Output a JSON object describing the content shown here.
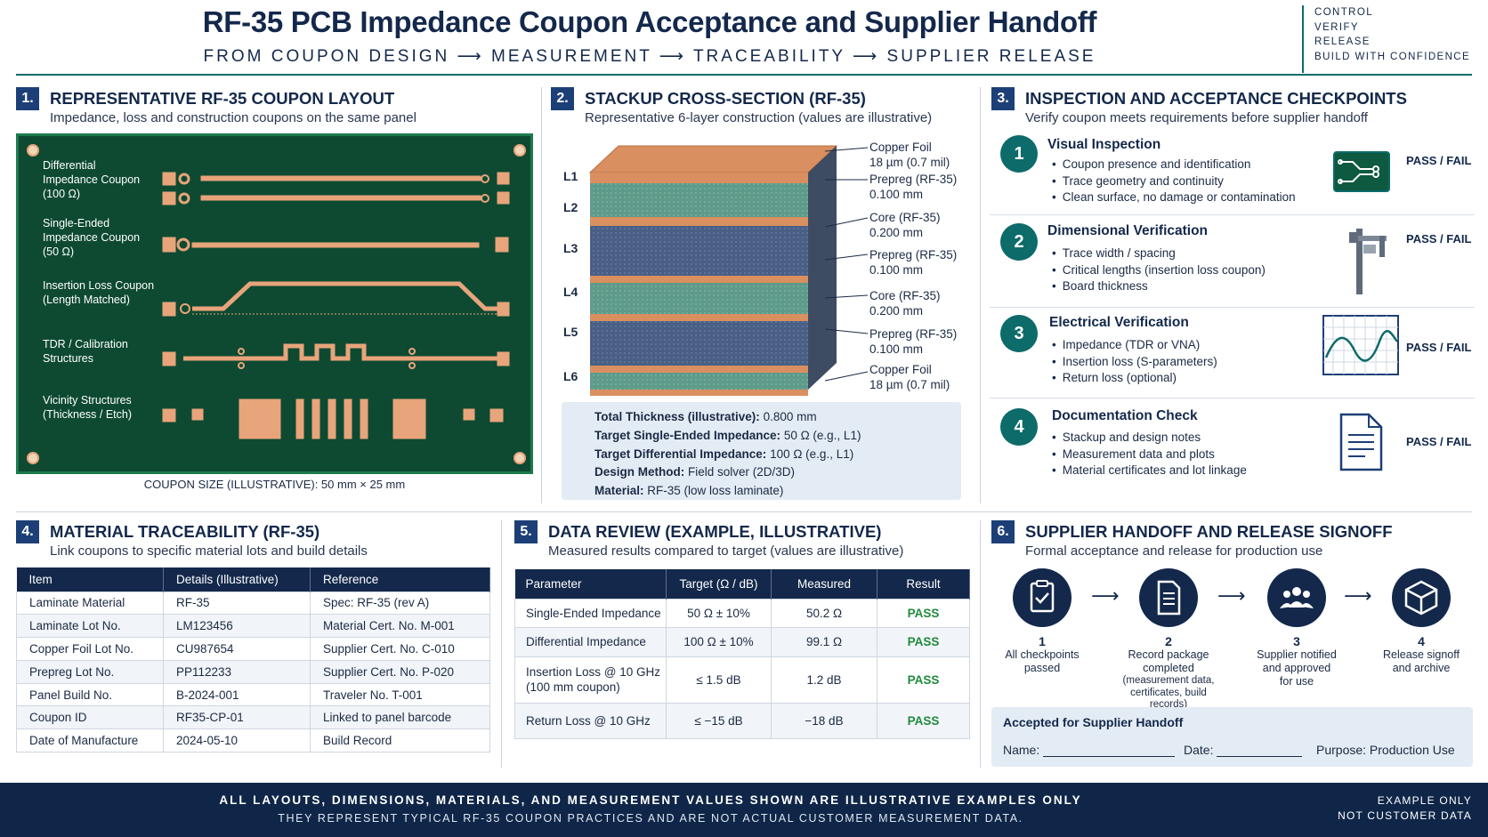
{
  "header": {
    "title": "RF-35 PCB Impedance Coupon Acceptance and Supplier Handoff",
    "subtitle": "FROM COUPON DESIGN ⟶ MEASUREMENT ⟶ TRACEABILITY ⟶ SUPPLIER RELEASE",
    "tagline": [
      "CONTROL",
      "VERIFY",
      "RELEASE",
      "BUILD WITH CONFIDENCE"
    ]
  },
  "section1": {
    "number": "1.",
    "title": "REPRESENTATIVE RF-35 COUPON LAYOUT",
    "subtitle": "Impedance, loss and construction coupons on the same panel",
    "coupons": [
      {
        "label": "Differential Impedance Coupon (100 Ω)"
      },
      {
        "label": "Single-Ended Impedance Coupon (50 Ω)"
      },
      {
        "label": "Insertion Loss Coupon (Length Matched)"
      },
      {
        "label": "TDR / Calibration Structures"
      },
      {
        "label": "Vicinity Structures (Thickness / Etch)"
      }
    ],
    "coupon_size": "COUPON SIZE (ILLUSTRATIVE): 50 mm × 25 mm",
    "colors": {
      "board": "#0e4a32",
      "copper": "#e8a47a"
    }
  },
  "section2": {
    "number": "2.",
    "title": "STACKUP CROSS-SECTION (RF-35)",
    "subtitle": "Representative 6-layer construction (values are illustrative)",
    "layers": [
      "L1",
      "L2",
      "L3",
      "L4",
      "L5",
      "L6"
    ],
    "notes": [
      {
        "name": "Copper Foil",
        "value": "18 µm (0.7 mil)"
      },
      {
        "name": "Prepreg (RF-35)",
        "value": "0.100 mm"
      },
      {
        "name": "Core (RF-35)",
        "value": "0.200 mm"
      },
      {
        "name": "Prepreg (RF-35)",
        "value": "0.100 mm"
      },
      {
        "name": "Core (RF-35)",
        "value": "0.200 mm"
      },
      {
        "name": "Prepreg (RF-35)",
        "value": "0.100 mm"
      },
      {
        "name": "Copper Foil",
        "value": "18 µm (0.7 mil)"
      }
    ],
    "summary": [
      {
        "key": "Total Thickness (illustrative):",
        "value": "0.800 mm"
      },
      {
        "key": "Target Single-Ended Impedance:",
        "value": "50 Ω (e.g., L1)"
      },
      {
        "key": "Target Differential Impedance:",
        "value": "100 Ω (e.g., L1)"
      },
      {
        "key": "Design Method:",
        "value": "Field solver (2D/3D)"
      },
      {
        "key": "Material:",
        "value": "RF-35 (low loss laminate)"
      }
    ]
  },
  "section3": {
    "number": "3.",
    "title": "INSPECTION AND ACCEPTANCE CHECKPOINTS",
    "subtitle": "Verify coupon meets requirements before supplier handoff",
    "pass_fail": "PASS / FAIL",
    "checks": [
      {
        "num": "1",
        "title": "Visual Inspection",
        "icon": "pcb-icon",
        "bullets": [
          "Coupon presence and identification",
          "Trace geometry and continuity",
          "Clean surface, no damage or contamination"
        ]
      },
      {
        "num": "2",
        "title": "Dimensional Verification",
        "icon": "caliper-icon",
        "bullets": [
          "Trace width / spacing",
          "Critical lengths (insertion loss coupon)",
          "Board thickness"
        ]
      },
      {
        "num": "3",
        "title": "Electrical Verification",
        "icon": "waveform-icon",
        "bullets": [
          "Impedance (TDR or VNA)",
          "Insertion loss (S-parameters)",
          "Return loss (optional)"
        ]
      },
      {
        "num": "4",
        "title": "Documentation Check",
        "icon": "document-icon",
        "bullets": [
          "Stackup and design notes",
          "Measurement data and plots",
          "Material certificates and lot linkage"
        ]
      }
    ]
  },
  "section4": {
    "number": "4.",
    "title": "MATERIAL TRACEABILITY (RF-35)",
    "subtitle": "Link coupons to specific material lots and build details",
    "columns": [
      "Item",
      "Details (Illustrative)",
      "Reference"
    ],
    "rows": [
      [
        "Laminate Material",
        "RF-35",
        "Spec: RF-35 (rev A)"
      ],
      [
        "Laminate Lot No.",
        "LM123456",
        "Material Cert. No. M-001"
      ],
      [
        "Copper Foil Lot No.",
        "CU987654",
        "Supplier Cert. No. C-010"
      ],
      [
        "Prepreg Lot No.",
        "PP112233",
        "Supplier Cert. No. P-020"
      ],
      [
        "Panel Build No.",
        "B-2024-001",
        "Traveler No. T-001"
      ],
      [
        "Coupon ID",
        "RF35-CP-01",
        "Linked to panel barcode"
      ],
      [
        "Date of Manufacture",
        "2024-05-10",
        "Build Record"
      ]
    ]
  },
  "section5": {
    "number": "5.",
    "title": "DATA REVIEW (EXAMPLE, ILLUSTRATIVE)",
    "subtitle": "Measured results compared to target (values are illustrative)",
    "columns": [
      "Parameter",
      "Target (Ω / dB)",
      "Measured",
      "Result"
    ],
    "rows": [
      {
        "param": "Single-Ended Impedance",
        "target": "50 Ω ± 10%",
        "measured": "50.2 Ω",
        "result": "PASS"
      },
      {
        "param": "Differential Impedance",
        "target": "100 Ω ± 10%",
        "measured": "99.1 Ω",
        "result": "PASS"
      },
      {
        "param": "Insertion Loss @ 10 GHz",
        "param2": "(100 mm coupon)",
        "target": "≤ 1.5 dB",
        "measured": "1.2 dB",
        "result": "PASS"
      },
      {
        "param": "Return Loss @ 10 GHz",
        "target": "≤ −15 dB",
        "measured": "−18 dB",
        "result": "PASS"
      }
    ]
  },
  "section6": {
    "number": "6.",
    "title": "SUPPLIER HANDOFF AND RELEASE SIGNOFF",
    "subtitle": "Formal acceptance and release for production use",
    "steps": [
      {
        "num": "1",
        "icon": "clipboard-check-icon",
        "lines": [
          "All checkpoints",
          "passed"
        ]
      },
      {
        "num": "2",
        "icon": "document-icon",
        "lines": [
          "Record package",
          "completed",
          "(measurement data,",
          "certificates, build records)"
        ]
      },
      {
        "num": "3",
        "icon": "team-icon",
        "lines": [
          "Supplier notified",
          "and approved",
          "for use"
        ]
      },
      {
        "num": "4",
        "icon": "package-icon",
        "lines": [
          "Release signoff",
          "and archive"
        ]
      }
    ],
    "signoff": {
      "title": "Accepted for Supplier Handoff",
      "name_label": "Name:",
      "date_label": "Date:",
      "purpose": "Purpose: Production Use"
    }
  },
  "footer": {
    "line1": "ALL LAYOUTS, DIMENSIONS, MATERIALS, AND MEASUREMENT VALUES SHOWN ARE ILLUSTRATIVE EXAMPLES ONLY",
    "line2": "THEY REPRESENT TYPICAL RF-35 COUPON PRACTICES AND ARE NOT ACTUAL CUSTOMER MEASUREMENT DATA.",
    "right": [
      "EXAMPLE ONLY",
      "NOT CUSTOMER DATA"
    ]
  }
}
